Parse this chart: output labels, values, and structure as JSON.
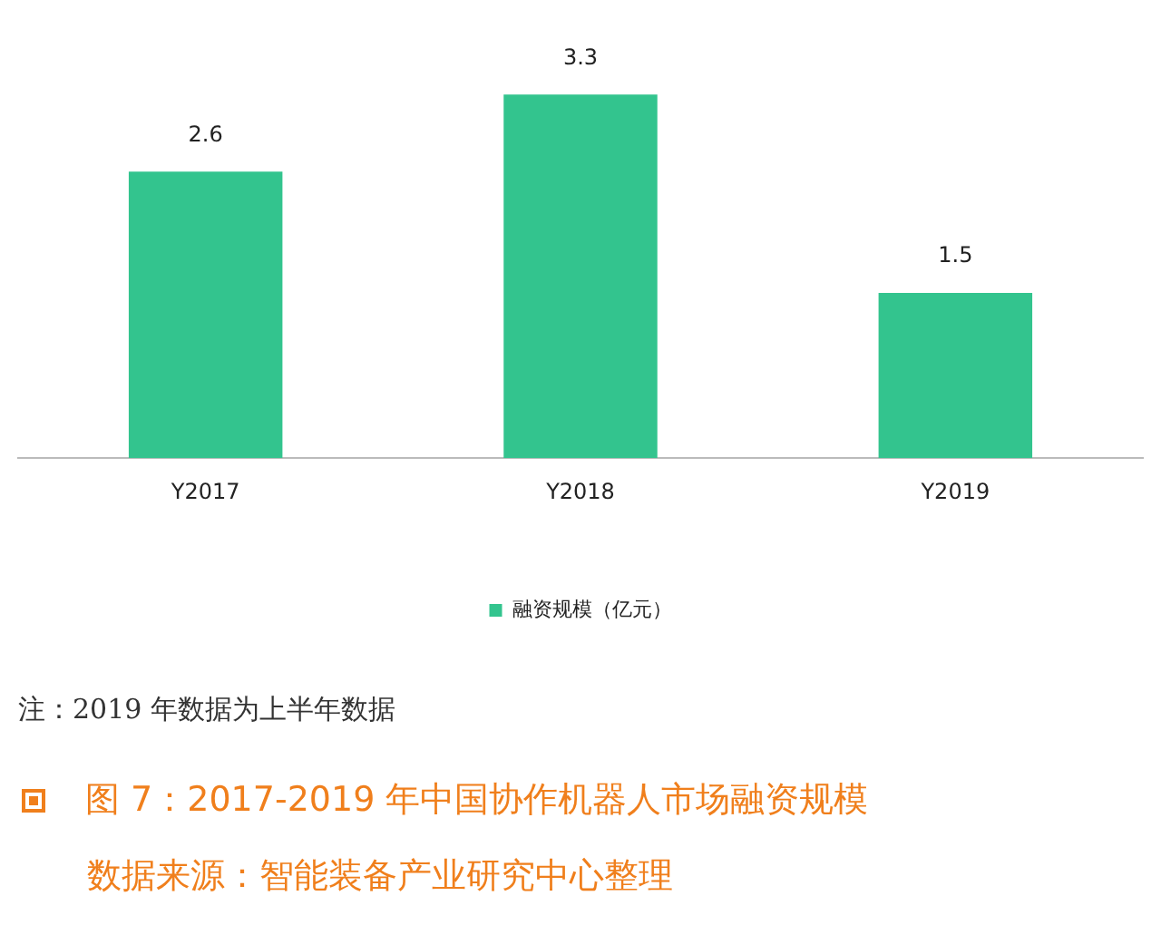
{
  "chart_data": {
    "type": "bar",
    "title": "图 7：2017-2019 年中国协作机器人市场融资规模",
    "categories": [
      "Y2017",
      "Y2018",
      "Y2019"
    ],
    "series": [
      {
        "name": "融资规模（亿元）",
        "color": "#33c48e",
        "values": [
          2.6,
          3.3,
          1.5
        ]
      }
    ],
    "data_labels": true,
    "grid": false,
    "legend": "bottom",
    "annotations": [
      "注：2019 年数据为上半年数据",
      "数据来源：智能装备产业研究中心整理"
    ]
  }
}
